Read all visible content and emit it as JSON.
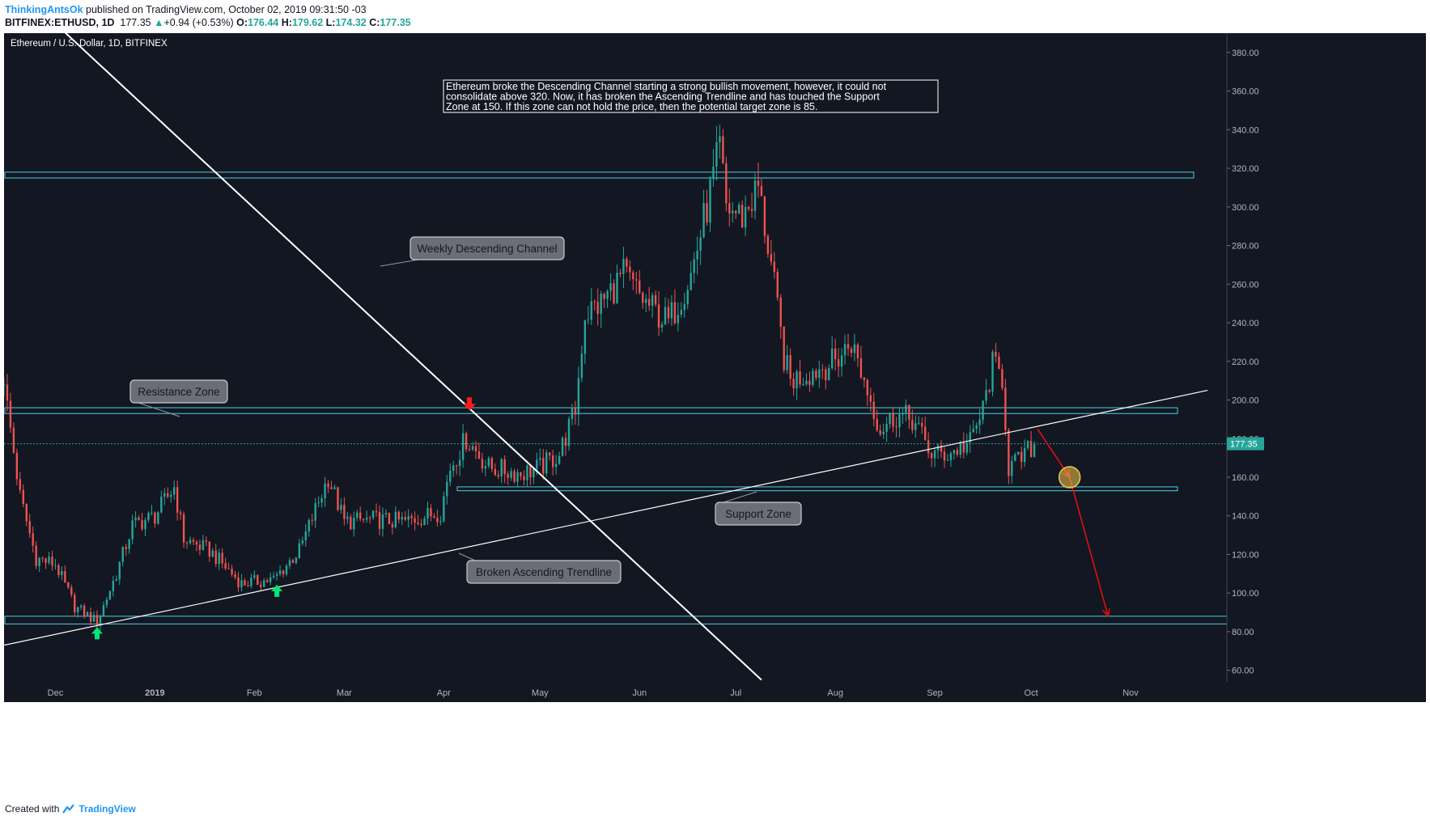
{
  "header": {
    "author": "ThinkingAntsOk",
    "published": "published on TradingView.com, October 02, 2019 09:31:50 -03",
    "symbol": "BITFINEX:ETHUSD, 1D",
    "last": "177.35",
    "change": "+0.94 (+0.53%)",
    "o_label": "O:",
    "o": "176.44",
    "h_label": "H:",
    "h": "179.62",
    "l_label": "L:",
    "l": "174.32",
    "c_label": "C:",
    "c": "177.35"
  },
  "footer": {
    "created_with": "Created with",
    "brand": "TradingView"
  },
  "colors": {
    "background": "#131722",
    "bull": "#26a69a",
    "bear": "#ef5350",
    "zone": "#4dd0e1",
    "trend": "#ffffff",
    "target": "#e01010",
    "marker_up": "#00e676",
    "marker_down": "#ff1a1a",
    "circle": "#f2c94c"
  },
  "chart_data": {
    "type": "candlestick",
    "title": "Ethereum / U.S. Dollar, 1D, BITFINEX",
    "x_range": [
      "2018-11-15",
      "2019-12-01"
    ],
    "ylim": [
      54,
      390
    ],
    "y_ticks": [
      60,
      80,
      100,
      120,
      140,
      160,
      180,
      200,
      220,
      240,
      260,
      280,
      300,
      320,
      340,
      360,
      380
    ],
    "x_ticks": [
      {
        "label": "Dec",
        "date": "2018-12-01"
      },
      {
        "label": "2019",
        "date": "2019-01-01"
      },
      {
        "label": "Feb",
        "date": "2019-02-01"
      },
      {
        "label": "Mar",
        "date": "2019-03-01"
      },
      {
        "label": "Apr",
        "date": "2019-04-01"
      },
      {
        "label": "May",
        "date": "2019-05-01"
      },
      {
        "label": "Jun",
        "date": "2019-06-01"
      },
      {
        "label": "Jul",
        "date": "2019-07-01"
      },
      {
        "label": "Aug",
        "date": "2019-08-01"
      },
      {
        "label": "Sep",
        "date": "2019-09-01"
      },
      {
        "label": "Oct",
        "date": "2019-10-01"
      },
      {
        "label": "Nov",
        "date": "2019-11-01"
      }
    ],
    "last_price": 177.35,
    "price_path": [
      [
        "2018-11-15",
        208
      ],
      [
        "2018-11-20",
        150
      ],
      [
        "2018-11-25",
        118
      ],
      [
        "2018-12-01",
        115
      ],
      [
        "2018-12-07",
        93
      ],
      [
        "2018-12-14",
        85
      ],
      [
        "2018-12-20",
        110
      ],
      [
        "2018-12-25",
        135
      ],
      [
        "2019-01-01",
        140
      ],
      [
        "2019-01-07",
        155
      ],
      [
        "2019-01-10",
        128
      ],
      [
        "2019-01-18",
        122
      ],
      [
        "2019-01-28",
        105
      ],
      [
        "2019-02-07",
        107
      ],
      [
        "2019-02-15",
        122
      ],
      [
        "2019-02-24",
        160
      ],
      [
        "2019-03-01",
        137
      ],
      [
        "2019-03-10",
        138
      ],
      [
        "2019-03-20",
        137
      ],
      [
        "2019-03-31",
        142
      ],
      [
        "2019-04-03",
        165
      ],
      [
        "2019-04-08",
        180
      ],
      [
        "2019-04-15",
        165
      ],
      [
        "2019-04-25",
        162
      ],
      [
        "2019-05-01",
        165
      ],
      [
        "2019-05-07",
        172
      ],
      [
        "2019-05-12",
        195
      ],
      [
        "2019-05-15",
        245
      ],
      [
        "2019-05-20",
        250
      ],
      [
        "2019-05-27",
        265
      ],
      [
        "2019-06-03",
        250
      ],
      [
        "2019-06-10",
        240
      ],
      [
        "2019-06-17",
        265
      ],
      [
        "2019-06-22",
        300
      ],
      [
        "2019-06-26",
        330
      ],
      [
        "2019-06-28",
        300
      ],
      [
        "2019-07-03",
        295
      ],
      [
        "2019-07-08",
        310
      ],
      [
        "2019-07-12",
        270
      ],
      [
        "2019-07-16",
        222
      ],
      [
        "2019-07-18",
        210
      ],
      [
        "2019-07-25",
        215
      ],
      [
        "2019-08-01",
        220
      ],
      [
        "2019-08-06",
        230
      ],
      [
        "2019-08-10",
        210
      ],
      [
        "2019-08-15",
        185
      ],
      [
        "2019-08-20",
        192
      ],
      [
        "2019-08-25",
        190
      ],
      [
        "2019-08-31",
        172
      ],
      [
        "2019-09-05",
        172
      ],
      [
        "2019-09-12",
        178
      ],
      [
        "2019-09-16",
        195
      ],
      [
        "2019-09-19",
        218
      ],
      [
        "2019-09-22",
        212
      ],
      [
        "2019-09-24",
        165
      ],
      [
        "2019-09-27",
        168
      ],
      [
        "2019-10-02",
        177
      ]
    ],
    "zones": [
      {
        "name": "Resistance Zone",
        "low": 193,
        "high": 196
      },
      {
        "name": "Support Zone",
        "low": 153,
        "high": 155
      },
      {
        "name": "",
        "low": 315,
        "high": 318
      },
      {
        "name": "",
        "low": 84,
        "high": 88
      }
    ],
    "lines": [
      {
        "name": "Weekly Descending Channel",
        "from": [
          "2018-12-01",
          395
        ],
        "to": [
          "2019-07-09",
          55
        ]
      },
      {
        "name": "Broken Ascending Trendline",
        "from": [
          "2018-11-15",
          73
        ],
        "to": [
          "2019-11-25",
          205
        ]
      }
    ],
    "projection": [
      [
        "2019-10-03",
        185
      ],
      [
        "2019-10-13",
        160
      ],
      [
        "2019-10-25",
        88
      ]
    ],
    "annotations": {
      "note": "Ethereum broke the Descending Channel starting a strong bullish movement, however, it could not consolidate above 320. Now, it has broken the Ascending Trendline and has touched the Support Zone at 150. If this zone can not hold the price, then the potential target zone is 85.",
      "resistance": "Resistance Zone",
      "support": "Support Zone",
      "channel": "Weekly Descending Channel",
      "trendline": "Broken Ascending Trendline"
    },
    "markers": [
      {
        "type": "up",
        "date": "2018-12-14",
        "value": 79
      },
      {
        "type": "up",
        "date": "2019-02-08",
        "value": 101
      },
      {
        "type": "down",
        "date": "2019-04-09",
        "value": 198
      }
    ]
  }
}
